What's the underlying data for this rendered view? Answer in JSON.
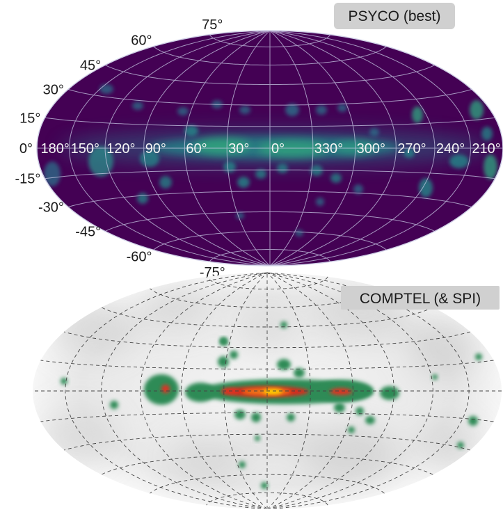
{
  "panels": {
    "psyco": {
      "badge": "PSYCO (best)",
      "latitude_labels": [
        {
          "value": 75,
          "text": "75°"
        },
        {
          "value": 60,
          "text": "60°"
        },
        {
          "value": 45,
          "text": "45°"
        },
        {
          "value": 30,
          "text": "30°"
        },
        {
          "value": 15,
          "text": "15°"
        },
        {
          "value": 0,
          "text": "0°"
        },
        {
          "value": -15,
          "text": "-15°"
        },
        {
          "value": -30,
          "text": "-30°"
        },
        {
          "value": -45,
          "text": "-45°"
        },
        {
          "value": -60,
          "text": "-60°"
        },
        {
          "value": -75,
          "text": "-75°"
        }
      ],
      "longitude_labels": [
        {
          "value": 180,
          "text": "180°"
        },
        {
          "value": 150,
          "text": "150°"
        },
        {
          "value": 120,
          "text": "120°"
        },
        {
          "value": 90,
          "text": "90°"
        },
        {
          "value": 60,
          "text": "60°"
        },
        {
          "value": 30,
          "text": "30°"
        },
        {
          "value": 0,
          "text": "0°"
        },
        {
          "value": 330,
          "text": "330°"
        },
        {
          "value": 300,
          "text": "300°"
        },
        {
          "value": 270,
          "text": "270°"
        },
        {
          "value": 240,
          "text": "240°"
        },
        {
          "value": 210,
          "text": "210°"
        }
      ]
    },
    "comptel": {
      "badge": "COMPTEL (& SPI)"
    }
  },
  "colors": {
    "psyco_background": "#440154",
    "psyco_blob": "#21918c",
    "psyco_blob_bright": "#35b779",
    "psyco_grid": "#c9c9e6",
    "comptel_background": "#ececec",
    "comptel_green": "#2e8b57",
    "comptel_red": "#e03020",
    "comptel_yellow": "#ffd400",
    "badge_background": "#d0d0d0"
  }
}
